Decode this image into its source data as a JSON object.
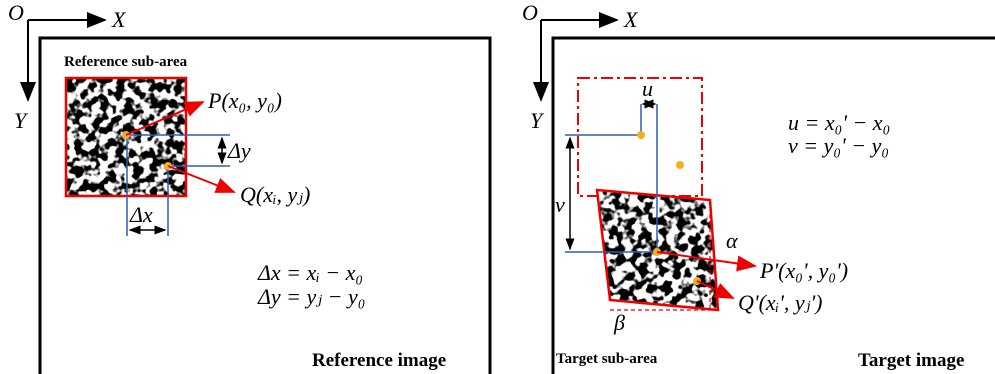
{
  "left_panel": {
    "origin": "O",
    "x_axis": "X",
    "y_axis": "Y",
    "subarea_label": "Reference sub-area",
    "point_p": "P(x₀, y₀)",
    "point_q": "Q(xᵢ, yⱼ)",
    "delta_x": "Δx",
    "delta_y": "Δy",
    "equations": [
      "Δx = xᵢ − x₀",
      "Δy = yⱼ − y₀"
    ],
    "image_label": "Reference image"
  },
  "right_panel": {
    "origin": "O",
    "x_axis": "X",
    "y_axis": "Y",
    "u_label": "u",
    "v_label": "v",
    "equations": [
      "u = x₀' − x₀",
      "v = y₀' − y₀"
    ],
    "alpha": "α",
    "beta": "β",
    "point_p": "P'(x₀', y₀')",
    "point_q": "Q'(xᵢ', yⱼ')",
    "subarea_label": "Target sub-area",
    "image_label": "Target image"
  }
}
